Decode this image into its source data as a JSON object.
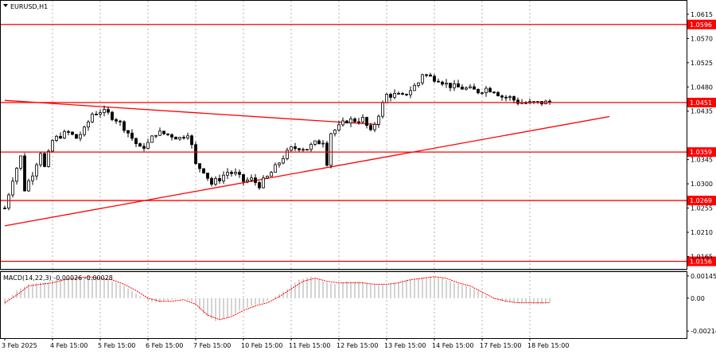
{
  "window_title": "EURUSD,H1",
  "chart_data": [
    {
      "type": "candlestick",
      "title": "EURUSD,H1",
      "symbol": "EURUSD",
      "timeframe": "H1",
      "ylim": [
        1.0142,
        1.064
      ],
      "y_ticks": [
        "1.0615",
        "1.0570",
        "1.0525",
        "1.0480",
        "1.0435",
        "1.0345",
        "1.0300",
        "1.0255",
        "1.0210",
        "1.0165"
      ],
      "x_labels": [
        "3 Feb 2025",
        "4 Feb 15:00",
        "5 Feb 15:00",
        "6 Feb 15:00",
        "7 Feb 15:00",
        "10 Feb 15:00",
        "11 Feb 15:00",
        "12 Feb 15:00",
        "13 Feb 15:00",
        "14 Feb 15:00",
        "17 Feb 15:00",
        "18 Feb 15:00"
      ],
      "x_label_index": [
        0,
        12,
        24,
        36,
        48,
        60,
        72,
        84,
        96,
        108,
        120,
        132
      ],
      "close_path": [
        [
          0,
          1.0255
        ],
        [
          2,
          1.031
        ],
        [
          4,
          1.035
        ],
        [
          5,
          1.029
        ],
        [
          7,
          1.032
        ],
        [
          9,
          1.036
        ],
        [
          10,
          1.033
        ],
        [
          12,
          1.038
        ],
        [
          14,
          1.039
        ],
        [
          16,
          1.0395
        ],
        [
          18,
          1.0385
        ],
        [
          20,
          1.04
        ],
        [
          22,
          1.043
        ],
        [
          24,
          1.0435
        ],
        [
          26,
          1.043
        ],
        [
          28,
          1.042
        ],
        [
          30,
          1.0405
        ],
        [
          32,
          1.0385
        ],
        [
          34,
          1.0365
        ],
        [
          36,
          1.0375
        ],
        [
          38,
          1.0395
        ],
        [
          40,
          1.0393
        ],
        [
          42,
          1.039
        ],
        [
          44,
          1.0385
        ],
        [
          46,
          1.0395
        ],
        [
          47,
          1.037
        ],
        [
          48,
          1.0335
        ],
        [
          50,
          1.0325
        ],
        [
          52,
          1.03
        ],
        [
          54,
          1.031
        ],
        [
          56,
          1.0322
        ],
        [
          58,
          1.0318
        ],
        [
          60,
          1.0305
        ],
        [
          62,
          1.0308
        ],
        [
          64,
          1.0298
        ],
        [
          66,
          1.0312
        ],
        [
          68,
          1.033
        ],
        [
          70,
          1.035
        ],
        [
          72,
          1.0365
        ],
        [
          74,
          1.0368
        ],
        [
          76,
          1.0366
        ],
        [
          78,
          1.0375
        ],
        [
          80,
          1.038
        ],
        [
          81,
          1.034
        ],
        [
          82,
          1.0395
        ],
        [
          84,
          1.0405
        ],
        [
          86,
          1.0418
        ],
        [
          88,
          1.0418
        ],
        [
          90,
          1.042
        ],
        [
          92,
          1.0395
        ],
        [
          94,
          1.043
        ],
        [
          96,
          1.0465
        ],
        [
          98,
          1.0465
        ],
        [
          100,
          1.0462
        ],
        [
          102,
          1.0475
        ],
        [
          104,
          1.0488
        ],
        [
          105,
          1.0505
        ],
        [
          107,
          1.0498
        ],
        [
          109,
          1.0495
        ],
        [
          111,
          1.0485
        ],
        [
          113,
          1.048
        ],
        [
          115,
          1.0478
        ],
        [
          117,
          1.0475
        ],
        [
          119,
          1.0472
        ],
        [
          121,
          1.0477
        ],
        [
          123,
          1.0474
        ],
        [
          125,
          1.0462
        ],
        [
          127,
          1.046
        ],
        [
          129,
          1.0452
        ],
        [
          131,
          1.045
        ],
        [
          133,
          1.0449
        ],
        [
          135,
          1.0451
        ],
        [
          137,
          1.0451
        ]
      ],
      "candle_count": 138,
      "horizontal_levels": [
        {
          "value": 1.0596,
          "label": "1.0596",
          "color": "#ff0000"
        },
        {
          "value": 1.0451,
          "label": "1.0451",
          "color": "#ff0000"
        },
        {
          "value": 1.0359,
          "label": "1.0359",
          "color": "#ff0000"
        },
        {
          "value": 1.0269,
          "label": "1.0269",
          "color": "#ff0000"
        },
        {
          "value": 1.0156,
          "label": "1.0156",
          "color": "#ff0000"
        }
      ],
      "trendlines": [
        {
          "from": [
            0,
            1.0455
          ],
          "to": [
            94,
            1.041
          ],
          "color": "#ff0000"
        },
        {
          "from": [
            0,
            1.0222
          ],
          "to": [
            152,
            1.0425
          ],
          "color": "#ff0000"
        }
      ],
      "colors": {
        "candle": "#000000",
        "level": "#ff0000"
      }
    },
    {
      "type": "histogram",
      "title": "MACD(14,22,3)",
      "label": "MACD(14,22,3) -0.00026 -0.00028",
      "values_text": [
        "-0.00026",
        "-0.00028"
      ],
      "ylim": [
        -0.0026,
        0.0017
      ],
      "y_ticks": [
        "0.00145",
        "0.00",
        "-0.00214"
      ],
      "histogram_path": [
        [
          0,
          -0.0004
        ],
        [
          3,
          0.0005
        ],
        [
          6,
          0.0009
        ],
        [
          9,
          0.001
        ],
        [
          12,
          0.0011
        ],
        [
          15,
          0.0013
        ],
        [
          18,
          0.0014
        ],
        [
          21,
          0.0014
        ],
        [
          24,
          0.0013
        ],
        [
          27,
          0.0011
        ],
        [
          30,
          0.0008
        ],
        [
          33,
          0.0003
        ],
        [
          36,
          -0.0002
        ],
        [
          39,
          -0.0003
        ],
        [
          42,
          -0.0001
        ],
        [
          45,
          0.0
        ],
        [
          47,
          -0.0002
        ],
        [
          50,
          -0.001
        ],
        [
          53,
          -0.0015
        ],
        [
          56,
          -0.0013
        ],
        [
          59,
          -0.0008
        ],
        [
          62,
          -0.0005
        ],
        [
          65,
          -0.0003
        ],
        [
          68,
          0.0001
        ],
        [
          71,
          0.0006
        ],
        [
          74,
          0.0012
        ],
        [
          77,
          0.0014
        ],
        [
          80,
          0.0011
        ],
        [
          83,
          0.0009
        ],
        [
          86,
          0.0011
        ],
        [
          89,
          0.0011
        ],
        [
          92,
          0.0009
        ],
        [
          95,
          0.0009
        ],
        [
          98,
          0.001
        ],
        [
          101,
          0.0012
        ],
        [
          104,
          0.0013
        ],
        [
          107,
          0.0014
        ],
        [
          110,
          0.0013
        ],
        [
          113,
          0.001
        ],
        [
          116,
          0.0008
        ],
        [
          119,
          0.0005
        ],
        [
          122,
          0.0
        ],
        [
          125,
          -0.0002
        ],
        [
          128,
          -0.0003
        ],
        [
          131,
          -0.0003
        ],
        [
          134,
          -0.0004
        ],
        [
          137,
          -0.0003
        ]
      ],
      "signal_path": [
        [
          0,
          -0.0003
        ],
        [
          3,
          0.0002
        ],
        [
          6,
          0.0008
        ],
        [
          9,
          0.0009
        ],
        [
          12,
          0.001
        ],
        [
          15,
          0.0012
        ],
        [
          18,
          0.0013
        ],
        [
          21,
          0.0014
        ],
        [
          24,
          0.0013
        ],
        [
          27,
          0.0012
        ],
        [
          30,
          0.0009
        ],
        [
          33,
          0.0005
        ],
        [
          36,
          0.0
        ],
        [
          39,
          -0.0002
        ],
        [
          42,
          -0.0002
        ],
        [
          45,
          -0.0001
        ],
        [
          48,
          -0.0004
        ],
        [
          51,
          -0.0011
        ],
        [
          54,
          -0.0014
        ],
        [
          57,
          -0.0012
        ],
        [
          60,
          -0.0008
        ],
        [
          63,
          -0.0005
        ],
        [
          66,
          -0.0003
        ],
        [
          69,
          0.0001
        ],
        [
          72,
          0.0006
        ],
        [
          75,
          0.0011
        ],
        [
          78,
          0.0013
        ],
        [
          81,
          0.0011
        ],
        [
          84,
          0.001
        ],
        [
          87,
          0.001
        ],
        [
          90,
          0.001
        ],
        [
          93,
          0.0009
        ],
        [
          96,
          0.0009
        ],
        [
          99,
          0.001
        ],
        [
          102,
          0.0012
        ],
        [
          105,
          0.0013
        ],
        [
          108,
          0.0014
        ],
        [
          111,
          0.0013
        ],
        [
          114,
          0.001
        ],
        [
          117,
          0.0008
        ],
        [
          120,
          0.0004
        ],
        [
          123,
          0.0
        ],
        [
          126,
          -0.0002
        ],
        [
          129,
          -0.0003
        ],
        [
          132,
          -0.0003
        ],
        [
          135,
          -0.0003
        ],
        [
          137,
          -0.0003
        ]
      ],
      "colors": {
        "histogram": "#c0c0c0",
        "signal": "#ff0000"
      }
    }
  ]
}
